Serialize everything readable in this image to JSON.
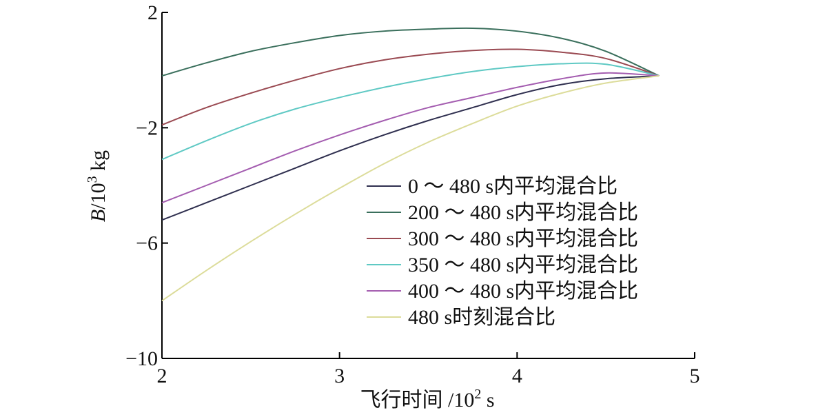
{
  "chart_data": {
    "type": "line",
    "title": "",
    "xlabel": "飞行时间 /10",
    "xlabel_sup": "2",
    "xlabel_unit": " s",
    "ylabel_var": "B",
    "ylabel_unit": "/10",
    "ylabel_sup": "3",
    "ylabel_unit2": " kg",
    "xlim": [
      2,
      5
    ],
    "ylim": [
      -10,
      2
    ],
    "xticks": [
      2,
      3,
      4,
      5
    ],
    "xtick_labels": [
      "2",
      "3",
      "4",
      "5"
    ],
    "yticks": [
      2,
      -2,
      -6,
      -10
    ],
    "ytick_labels": [
      "2",
      "−2",
      "−6",
      "−10"
    ],
    "legend_position": "center-right",
    "series": [
      {
        "name": "0 ～ 480 s内平均混合比",
        "color": "#2f2f4f",
        "x": [
          2.0,
          2.25,
          2.5,
          2.75,
          3.0,
          3.25,
          3.5,
          3.75,
          4.0,
          4.25,
          4.5,
          4.8
        ],
        "y": [
          -5.2,
          -4.6,
          -4.0,
          -3.4,
          -2.8,
          -2.25,
          -1.75,
          -1.3,
          -0.85,
          -0.5,
          -0.3,
          -0.2
        ]
      },
      {
        "name": "200 ～ 480 s内平均混合比",
        "color": "#3a6f5c",
        "x": [
          2.0,
          2.25,
          2.5,
          2.75,
          3.0,
          3.25,
          3.5,
          3.75,
          4.0,
          4.25,
          4.5,
          4.8
        ],
        "y": [
          -0.2,
          0.25,
          0.65,
          0.95,
          1.2,
          1.35,
          1.42,
          1.45,
          1.35,
          1.1,
          0.65,
          -0.2
        ]
      },
      {
        "name": "300 ～ 480 s内平均混合比",
        "color": "#9a4a52",
        "x": [
          2.0,
          2.25,
          2.5,
          2.75,
          3.0,
          3.25,
          3.5,
          3.75,
          4.0,
          4.25,
          4.5,
          4.8
        ],
        "y": [
          -1.9,
          -1.3,
          -0.8,
          -0.35,
          0.05,
          0.35,
          0.55,
          0.68,
          0.72,
          0.62,
          0.4,
          -0.2
        ]
      },
      {
        "name": "350 ～ 480 s内平均混合比",
        "color": "#5fc9c4",
        "x": [
          2.0,
          2.25,
          2.5,
          2.75,
          3.0,
          3.25,
          3.5,
          3.75,
          4.0,
          4.25,
          4.5,
          4.8
        ],
        "y": [
          -3.1,
          -2.45,
          -1.85,
          -1.35,
          -0.95,
          -0.6,
          -0.3,
          -0.05,
          0.12,
          0.22,
          0.2,
          -0.2
        ]
      },
      {
        "name": "400 ～ 480 s内平均混合比",
        "color": "#a45db0",
        "x": [
          2.0,
          2.25,
          2.5,
          2.75,
          3.0,
          3.25,
          3.5,
          3.75,
          4.0,
          4.25,
          4.5,
          4.8
        ],
        "y": [
          -4.6,
          -4.0,
          -3.4,
          -2.8,
          -2.25,
          -1.75,
          -1.3,
          -0.95,
          -0.6,
          -0.3,
          -0.1,
          -0.2
        ]
      },
      {
        "name": "480 s时刻混合比",
        "color": "#dcdc9a",
        "x": [
          2.0,
          2.25,
          2.5,
          2.75,
          3.0,
          3.25,
          3.5,
          3.75,
          4.0,
          4.25,
          4.5,
          4.8
        ],
        "y": [
          -8.0,
          -6.95,
          -5.95,
          -5.0,
          -4.1,
          -3.25,
          -2.5,
          -1.85,
          -1.25,
          -0.8,
          -0.45,
          -0.2
        ]
      }
    ]
  }
}
